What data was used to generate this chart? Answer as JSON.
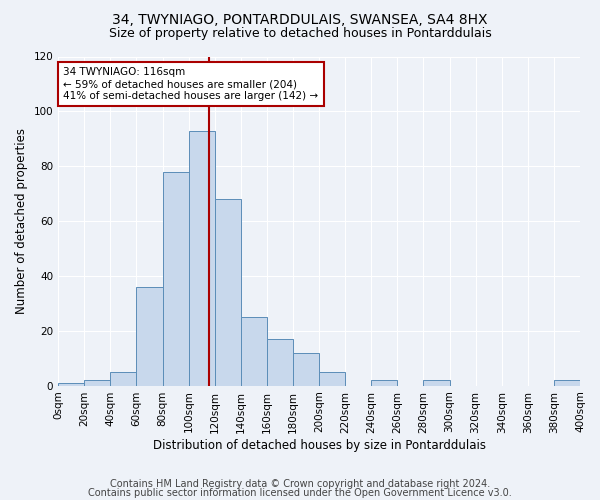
{
  "title": "34, TWYNIAGO, PONTARDDULAIS, SWANSEA, SA4 8HX",
  "subtitle": "Size of property relative to detached houses in Pontarddulais",
  "xlabel": "Distribution of detached houses by size in Pontarddulais",
  "ylabel": "Number of detached properties",
  "bar_values": [
    1,
    2,
    5,
    36,
    78,
    93,
    68,
    25,
    17,
    12,
    5,
    0,
    2,
    0,
    2,
    0,
    0,
    0,
    0,
    2
  ],
  "bin_edges": [
    0,
    20,
    40,
    60,
    80,
    100,
    120,
    140,
    160,
    180,
    200,
    220,
    240,
    260,
    280,
    300,
    320,
    340,
    360,
    380,
    400
  ],
  "tick_labels": [
    "0sqm",
    "20sqm",
    "40sqm",
    "60sqm",
    "80sqm",
    "100sqm",
    "120sqm",
    "140sqm",
    "160sqm",
    "180sqm",
    "200sqm",
    "220sqm",
    "240sqm",
    "260sqm",
    "280sqm",
    "300sqm",
    "320sqm",
    "340sqm",
    "360sqm",
    "380sqm",
    "400sqm"
  ],
  "bar_color": "#c8d8ec",
  "bar_edge_color": "#5b8db8",
  "vline_x": 116,
  "vline_color": "#aa0000",
  "annotation_text": "34 TWYNIAGO: 116sqm\n← 59% of detached houses are smaller (204)\n41% of semi-detached houses are larger (142) →",
  "annotation_box_color": "#ffffff",
  "annotation_box_edge_color": "#aa0000",
  "ylim": [
    0,
    120
  ],
  "yticks": [
    0,
    20,
    40,
    60,
    80,
    100,
    120
  ],
  "background_color": "#eef2f8",
  "footer_line1": "Contains HM Land Registry data © Crown copyright and database right 2024.",
  "footer_line2": "Contains public sector information licensed under the Open Government Licence v3.0.",
  "title_fontsize": 10,
  "subtitle_fontsize": 9,
  "xlabel_fontsize": 8.5,
  "ylabel_fontsize": 8.5,
  "tick_fontsize": 7.5,
  "footer_fontsize": 7
}
